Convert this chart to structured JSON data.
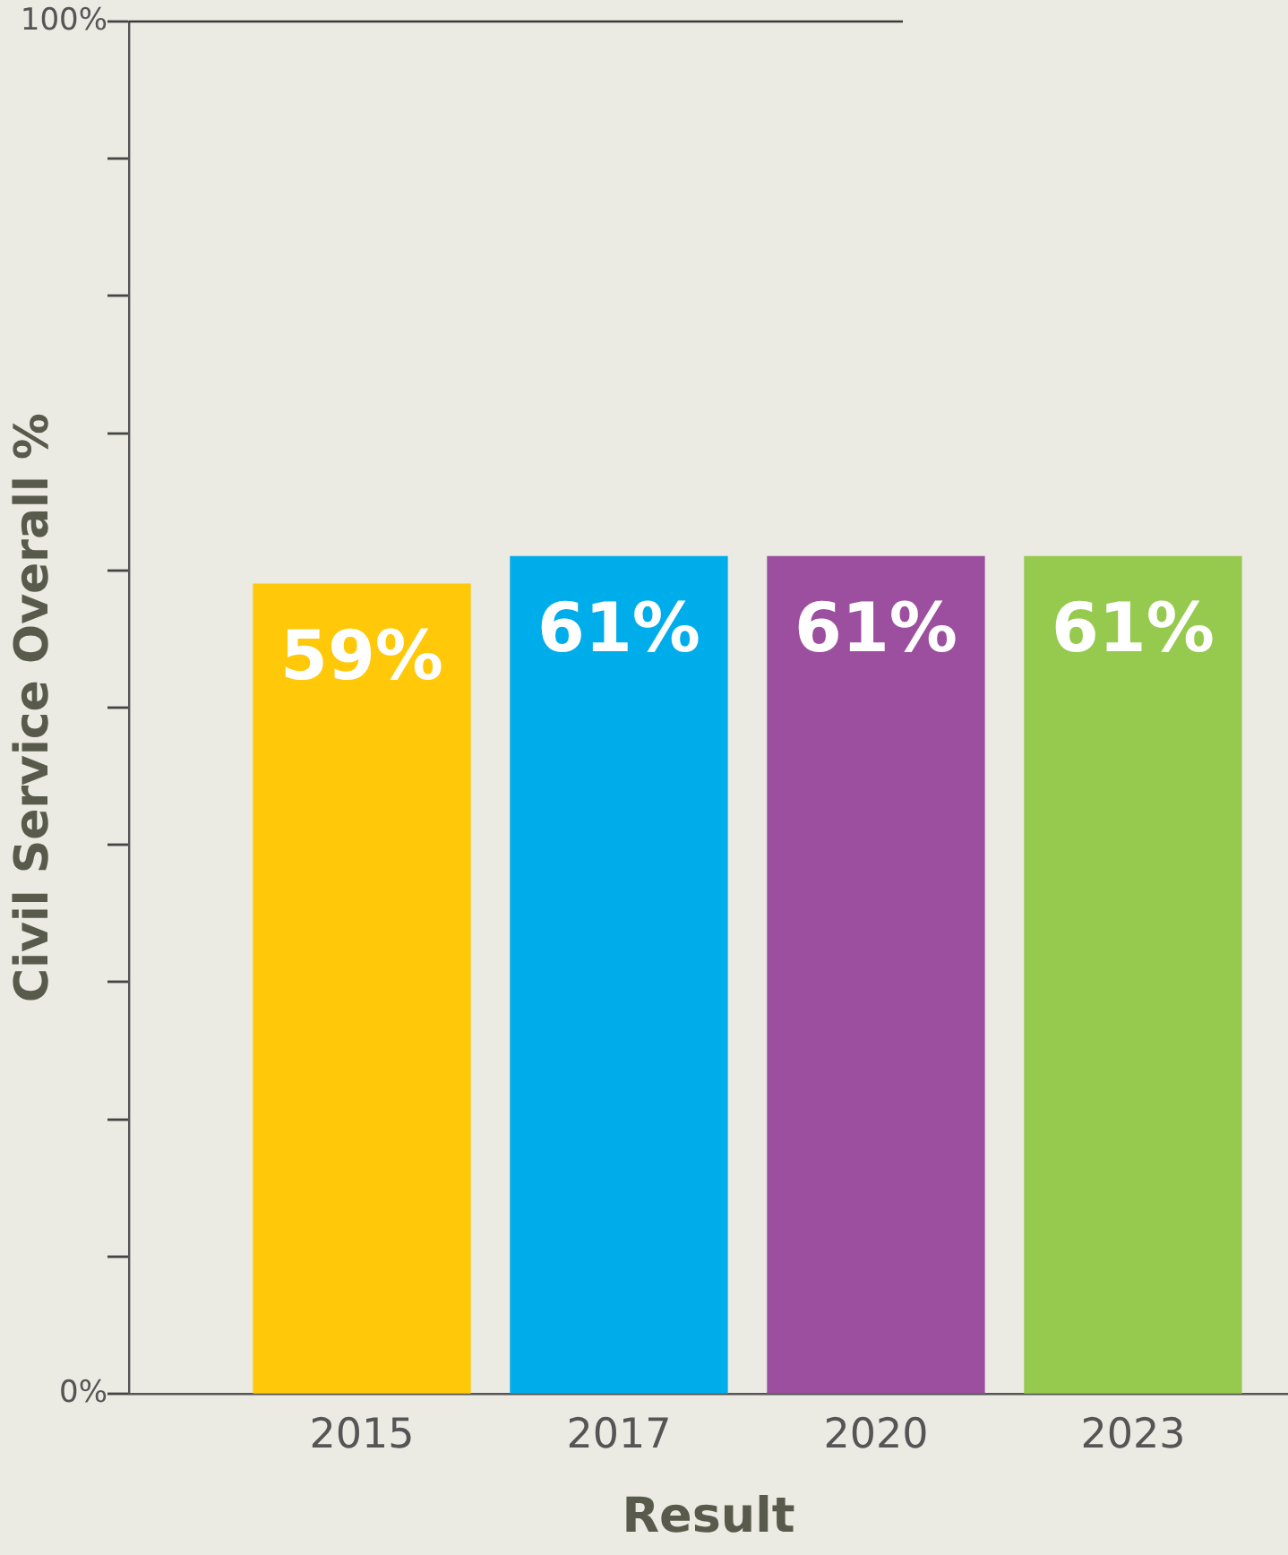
{
  "chart_data": {
    "type": "bar",
    "xlabel": "Result",
    "ylabel": "Civil Service Overall %",
    "categories": [
      "2015",
      "2017",
      "2020",
      "2023"
    ],
    "values": [
      59,
      61,
      61,
      61
    ],
    "colors": [
      "#ffc808",
      "#00adeb",
      "#9c4f9e",
      "#96ca4f"
    ],
    "value_labels": [
      "59%",
      "61%",
      "61%",
      "61%"
    ],
    "ylim": [
      0,
      100
    ],
    "yticks": [
      {
        "value": 0,
        "label": "0%"
      },
      {
        "value": 10,
        "label": null
      },
      {
        "value": 20,
        "label": null
      },
      {
        "value": 30,
        "label": null
      },
      {
        "value": 40,
        "label": null
      },
      {
        "value": 50,
        "label": null
      },
      {
        "value": 60,
        "label": null
      },
      {
        "value": 70,
        "label": null
      },
      {
        "value": 80,
        "label": null
      },
      {
        "value": 90,
        "label": null
      },
      {
        "value": 100,
        "label": "100%"
      }
    ],
    "ref_lines": [
      {
        "axis": "y",
        "value": 100,
        "color": "#3a3a3a"
      }
    ],
    "grid": false,
    "legend": false
  }
}
